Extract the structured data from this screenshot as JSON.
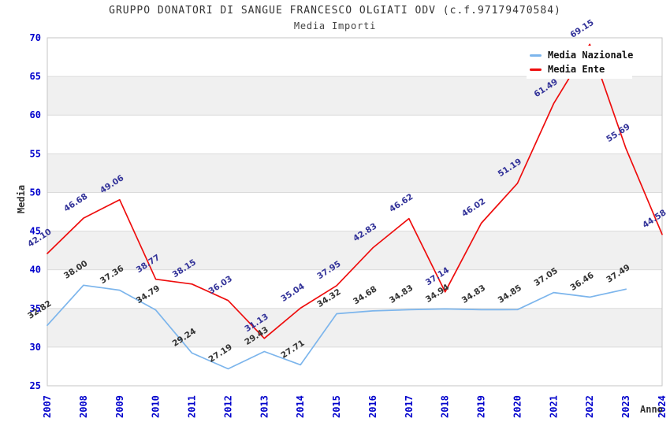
{
  "chart_data": {
    "type": "line",
    "title": "GRUPPO DONATORI DI SANGUE FRANCESCO OLGIATI ODV (c.f.97179470584)",
    "subtitle": "Media Importi",
    "xlabel": "Anno",
    "ylabel": "Media",
    "ylim": [
      25,
      70
    ],
    "ytick_step": 5,
    "grid": "horizontal-bands",
    "legend_position": "top-right",
    "categories": [
      "2007",
      "2008",
      "2009",
      "2010",
      "2011",
      "2012",
      "2013",
      "2014",
      "2015",
      "2016",
      "2017",
      "2018",
      "2019",
      "2020",
      "2021",
      "2022",
      "2023",
      "2024"
    ],
    "series": [
      {
        "name": "Media Nazionale",
        "color": "#7CB5EC",
        "label_color": "#333333",
        "values": [
          32.82,
          38.0,
          37.36,
          34.79,
          29.24,
          27.19,
          29.43,
          27.71,
          34.32,
          34.68,
          34.83,
          34.94,
          34.83,
          34.85,
          37.05,
          36.46,
          37.49,
          null
        ]
      },
      {
        "name": "Media Ente",
        "color": "#EE0D0D",
        "label_color": "#333399",
        "values": [
          42.1,
          46.68,
          49.06,
          38.77,
          38.15,
          36.03,
          31.13,
          35.04,
          37.95,
          42.83,
          46.62,
          37.14,
          46.02,
          51.19,
          61.49,
          69.15,
          55.69,
          44.58
        ]
      }
    ],
    "colors": {
      "tick_label": "#0000CC",
      "band": "#F0F0F0",
      "gridline": "#DBDBDB",
      "frame": "#C6C6C6",
      "title_text": "#333333"
    }
  }
}
